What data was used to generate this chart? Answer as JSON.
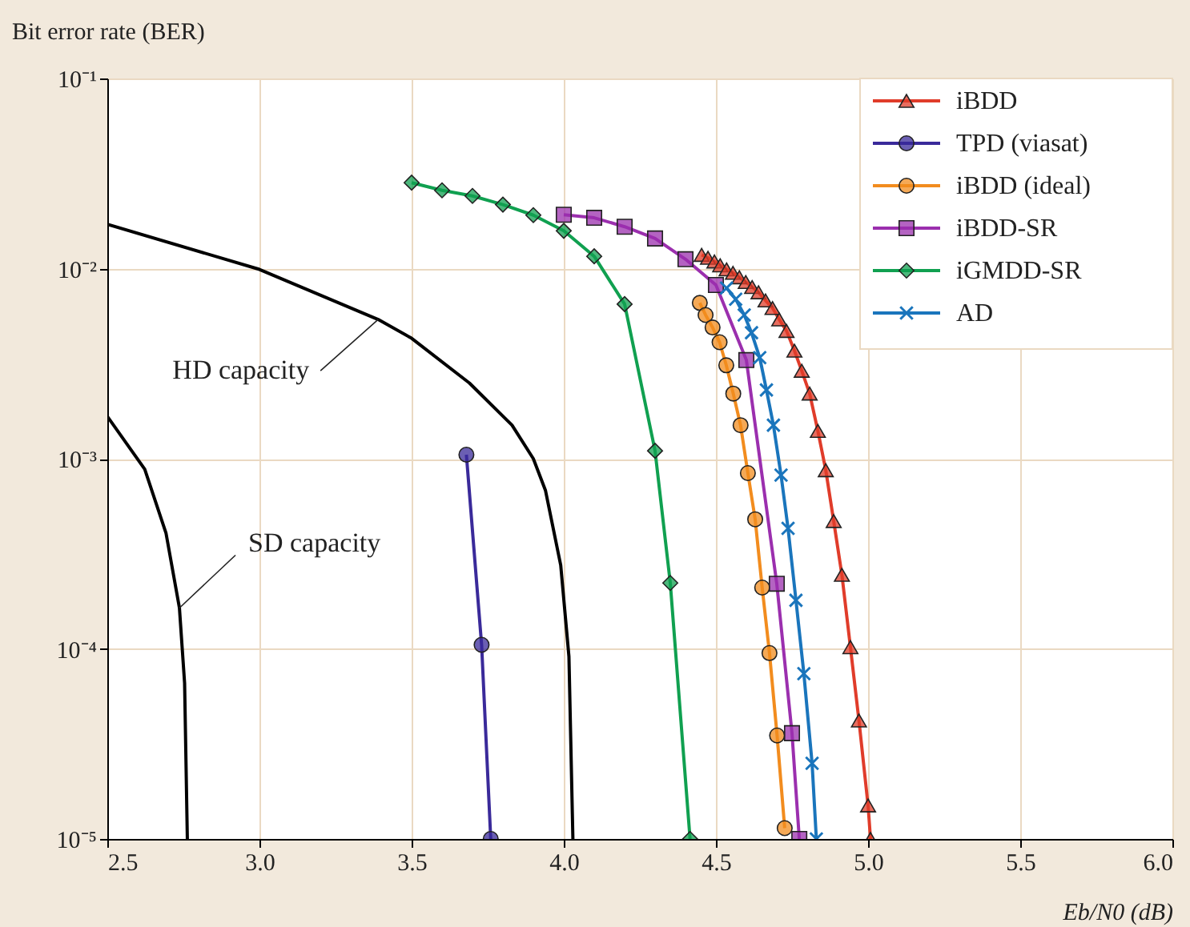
{
  "chart_data": {
    "type": "line",
    "xlabel": "Eb/N0 (dB)",
    "ylabel": "Bit error rate (BER)",
    "xlim": [
      2.5,
      6.0
    ],
    "ylim": [
      1e-05,
      0.1
    ],
    "log": "y",
    "grid": true,
    "legend": "top right",
    "xticks": [
      2.5,
      {
        "value": 3,
        "label": "3.0"
      },
      3.5,
      {
        "value": 4,
        "label": "4.0"
      },
      4.5,
      {
        "value": 5,
        "label": "5.0"
      },
      5.5,
      {
        "value": 6,
        "label": "6.0"
      }
    ],
    "yticks": [
      {
        "value": 1e-05,
        "label": "10⁻⁵"
      },
      {
        "value": 0.0001,
        "label": "10⁻⁴"
      },
      {
        "value": 0.001,
        "label": "10⁻³"
      },
      {
        "value": 0.01,
        "label": "10⁻²"
      },
      {
        "value": 0.1,
        "label": "10⁻¹"
      }
    ],
    "annotations": [
      {
        "text": "HD capacity",
        "x": 3.39,
        "y": 0.0054
      },
      {
        "text": "SD capacity",
        "x": 2.737,
        "y": 0.000164
      }
    ],
    "series": [
      {
        "color": "#000000",
        "marker": "none",
        "x": [
          2.5,
          3.0,
          3.39,
          3.5,
          3.69,
          3.83,
          3.9,
          3.94,
          3.99,
          4.017,
          4.03
        ],
        "values": [
          0.0171,
          0.0099,
          0.0054,
          0.0043,
          0.0025,
          0.0015,
          0.001,
          0.00068,
          0.000275,
          9.1e-05,
          1e-05
        ]
      },
      {
        "color": "#000000",
        "marker": "none",
        "x": [
          2.5,
          2.623,
          2.693,
          2.737,
          2.754,
          2.763
        ],
        "values": [
          0.00167,
          0.00088,
          0.000405,
          0.000164,
          6.6e-05,
          1e-05
        ]
      },
      {
        "name": "iBDD",
        "color": "#e03c2a",
        "marker": "triangle",
        "x": [
          4.453,
          4.474,
          4.495,
          4.514,
          4.535,
          4.556,
          4.577,
          4.598,
          4.619,
          4.64,
          4.663,
          4.686,
          4.708,
          4.732,
          4.758,
          4.782,
          4.808,
          4.835,
          4.861,
          4.887,
          4.914,
          4.942,
          4.97,
          5.0,
          5.008
        ],
        "values": [
          0.0118,
          0.0114,
          0.0109,
          0.0104,
          0.0099,
          0.0095,
          0.009,
          0.0085,
          0.008,
          0.0075,
          0.0068,
          0.0062,
          0.0054,
          0.0047,
          0.0037,
          0.0029,
          0.0022,
          0.0014,
          0.00087,
          0.00047,
          0.000245,
          0.000102,
          4.2e-05,
          1.5e-05,
          1e-05
        ]
      },
      {
        "name": "TPD (viasat)",
        "color": "#3a2a9a",
        "marker": "circle",
        "x": [
          3.68,
          3.73,
          3.76
        ],
        "values": [
          0.00105,
          0.000105,
          1e-05
        ]
      },
      {
        "name": "iBDD (ideal)",
        "color": "#f28c1e",
        "marker": "circle",
        "x": [
          4.447,
          4.466,
          4.489,
          4.512,
          4.534,
          4.557,
          4.581,
          4.605,
          4.629,
          4.652,
          4.676,
          4.701,
          4.726
        ],
        "values": [
          0.0066,
          0.0057,
          0.0049,
          0.0041,
          0.0031,
          0.0022,
          0.0015,
          0.00084,
          0.00048,
          0.00021,
          9.5e-05,
          3.5e-05,
          1.14e-05
        ]
      },
      {
        "name": "iBDD-SR",
        "color": "#9b2fae",
        "marker": "square",
        "x": [
          4.0,
          4.1,
          4.2,
          4.3,
          4.4,
          4.5,
          4.6,
          4.7,
          4.75,
          4.774
        ],
        "values": [
          0.0192,
          0.0185,
          0.0166,
          0.0144,
          0.0112,
          0.0082,
          0.0033,
          0.00022,
          3.6e-05,
          1e-05
        ]
      },
      {
        "name": "iGMDD-SR",
        "color": "#10a050",
        "marker": "diamond",
        "x": [
          3.5,
          3.6,
          3.7,
          3.8,
          3.9,
          4.0,
          4.1,
          4.2,
          4.3,
          4.35,
          4.415
        ],
        "values": [
          0.0283,
          0.0258,
          0.0241,
          0.0217,
          0.0191,
          0.0158,
          0.0116,
          0.0065,
          0.0011,
          0.000222,
          1e-05
        ]
      },
      {
        "name": "AD",
        "color": "#1a75bc",
        "marker": "cross",
        "x": [
          4.535,
          4.565,
          4.593,
          4.617,
          4.644,
          4.666,
          4.689,
          4.714,
          4.737,
          4.763,
          4.789,
          4.816,
          4.83
        ],
        "values": [
          0.0079,
          0.0069,
          0.0057,
          0.0046,
          0.0034,
          0.0023,
          0.0015,
          0.00082,
          0.00043,
          0.00018,
          7.4e-05,
          2.5e-05,
          1e-05
        ]
      }
    ]
  }
}
